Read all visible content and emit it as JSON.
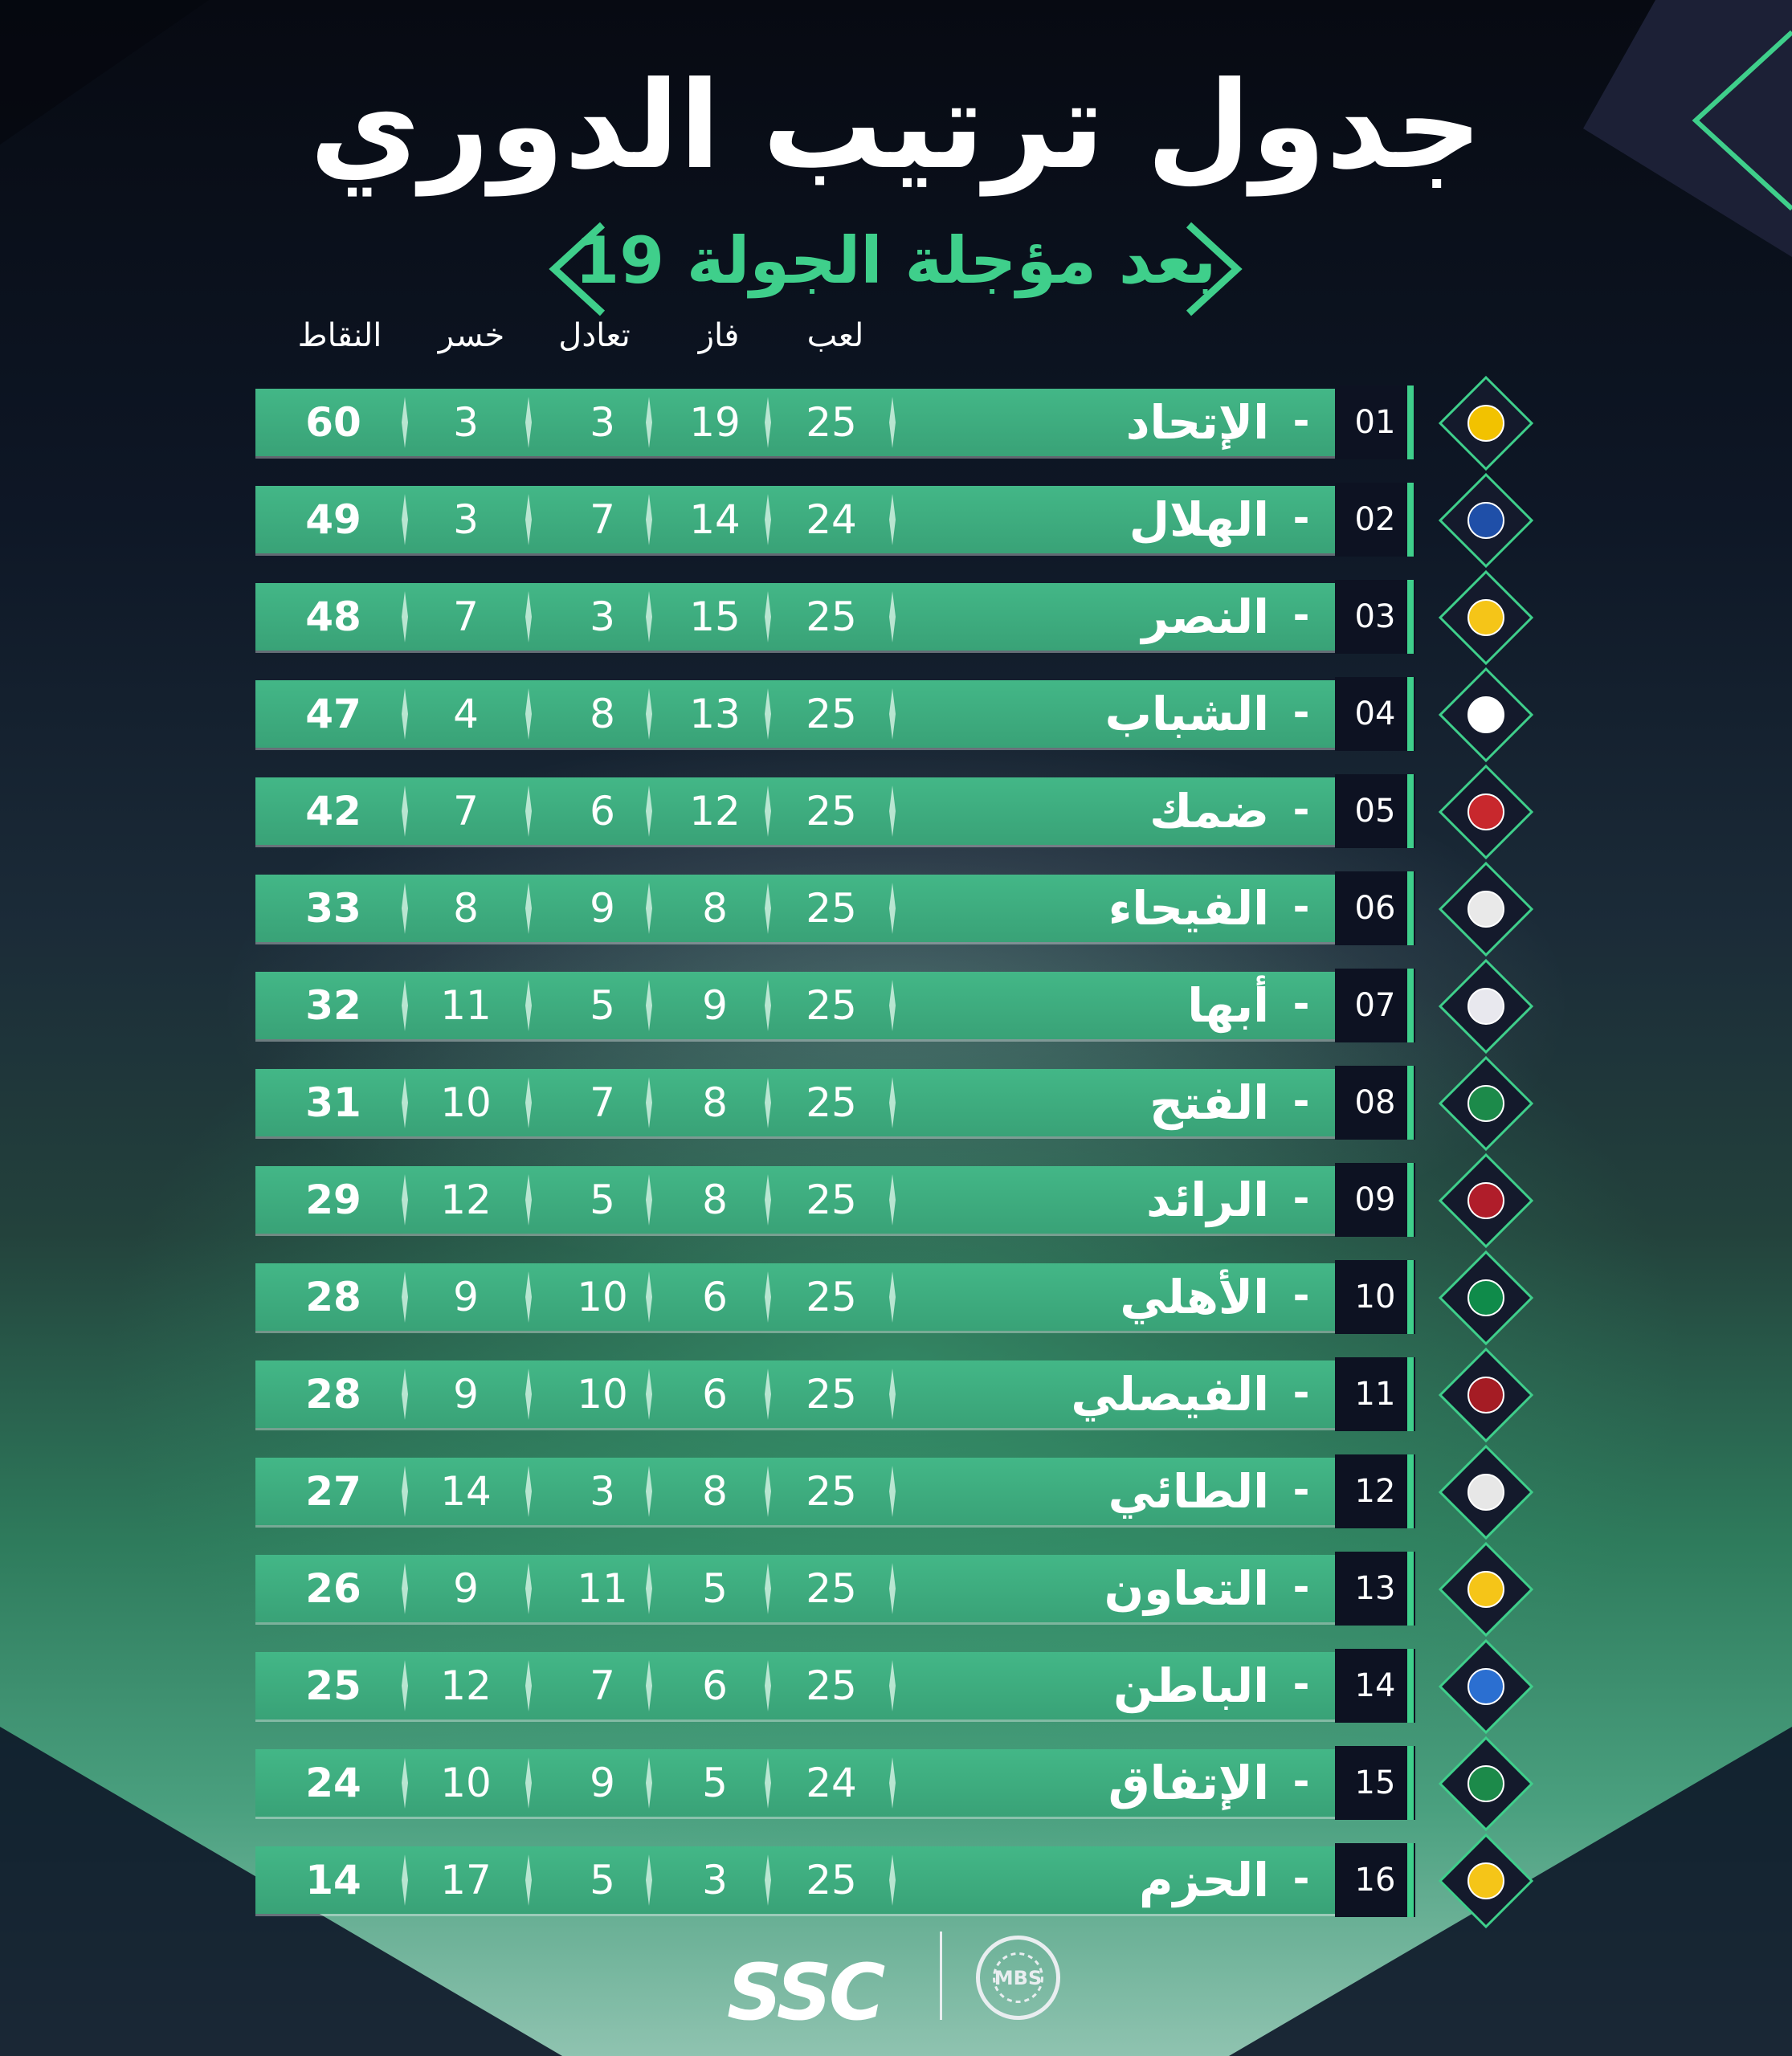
{
  "title": "جدول ترتيب الدوري",
  "subtitle": "بعد مؤجلة الجولة 19",
  "columns": {
    "played": "لعب",
    "won": "فاز",
    "draw": "تعادل",
    "lost": "خسر",
    "points": "النقاط"
  },
  "teams": [
    {
      "rank": "01",
      "name": "الإتحاد",
      "played": "25",
      "won": "19",
      "draw": "3",
      "lost": "3",
      "points": "60",
      "logo_color": "#f2c200"
    },
    {
      "rank": "02",
      "name": "الهلال",
      "played": "24",
      "won": "14",
      "draw": "7",
      "lost": "3",
      "points": "49",
      "logo_color": "#1f4fa8"
    },
    {
      "rank": "03",
      "name": "النصر",
      "played": "25",
      "won": "15",
      "draw": "3",
      "lost": "7",
      "points": "48",
      "logo_color": "#f5c518"
    },
    {
      "rank": "04",
      "name": "الشباب",
      "played": "25",
      "won": "13",
      "draw": "8",
      "lost": "4",
      "points": "47",
      "logo_color": "#ffffff"
    },
    {
      "rank": "05",
      "name": "ضمك",
      "played": "25",
      "won": "12",
      "draw": "6",
      "lost": "7",
      "points": "42",
      "logo_color": "#c8282d"
    },
    {
      "rank": "06",
      "name": "الفيحاء",
      "played": "25",
      "won": "8",
      "draw": "9",
      "lost": "8",
      "points": "33",
      "logo_color": "#e9e9e9"
    },
    {
      "rank": "07",
      "name": "أبها",
      "played": "25",
      "won": "9",
      "draw": "5",
      "lost": "11",
      "points": "32",
      "logo_color": "#e8e8ee"
    },
    {
      "rank": "08",
      "name": "الفتح",
      "played": "25",
      "won": "8",
      "draw": "7",
      "lost": "10",
      "points": "31",
      "logo_color": "#1c8a4a"
    },
    {
      "rank": "09",
      "name": "الرائد",
      "played": "25",
      "won": "8",
      "draw": "5",
      "lost": "12",
      "points": "29",
      "logo_color": "#b01d2a"
    },
    {
      "rank": "10",
      "name": "الأهلي",
      "played": "25",
      "won": "6",
      "draw": "10",
      "lost": "9",
      "points": "28",
      "logo_color": "#0f8b4a"
    },
    {
      "rank": "11",
      "name": "الفيصلي",
      "played": "25",
      "won": "6",
      "draw": "10",
      "lost": "9",
      "points": "28",
      "logo_color": "#a51c24"
    },
    {
      "rank": "12",
      "name": "الطائي",
      "played": "25",
      "won": "8",
      "draw": "3",
      "lost": "14",
      "points": "27",
      "logo_color": "#e7e7e7"
    },
    {
      "rank": "13",
      "name": "التعاون",
      "played": "25",
      "won": "5",
      "draw": "11",
      "lost": "9",
      "points": "26",
      "logo_color": "#f5c518"
    },
    {
      "rank": "14",
      "name": "الباطن",
      "played": "25",
      "won": "6",
      "draw": "7",
      "lost": "12",
      "points": "25",
      "logo_color": "#2b6fd1"
    },
    {
      "rank": "15",
      "name": "الإتفاق",
      "played": "24",
      "won": "5",
      "draw": "9",
      "lost": "10",
      "points": "24",
      "logo_color": "#1c8a4a"
    },
    {
      "rank": "16",
      "name": "الحزم",
      "played": "25",
      "won": "3",
      "draw": "5",
      "lost": "17",
      "points": "14",
      "logo_color": "#f5c518"
    }
  ],
  "footer": {
    "brand": "SSC",
    "partner": "MBS"
  },
  "colors": {
    "accent": "#3fcf8b",
    "row_bar": "#43b787",
    "rank_bg": "#0d1222"
  }
}
